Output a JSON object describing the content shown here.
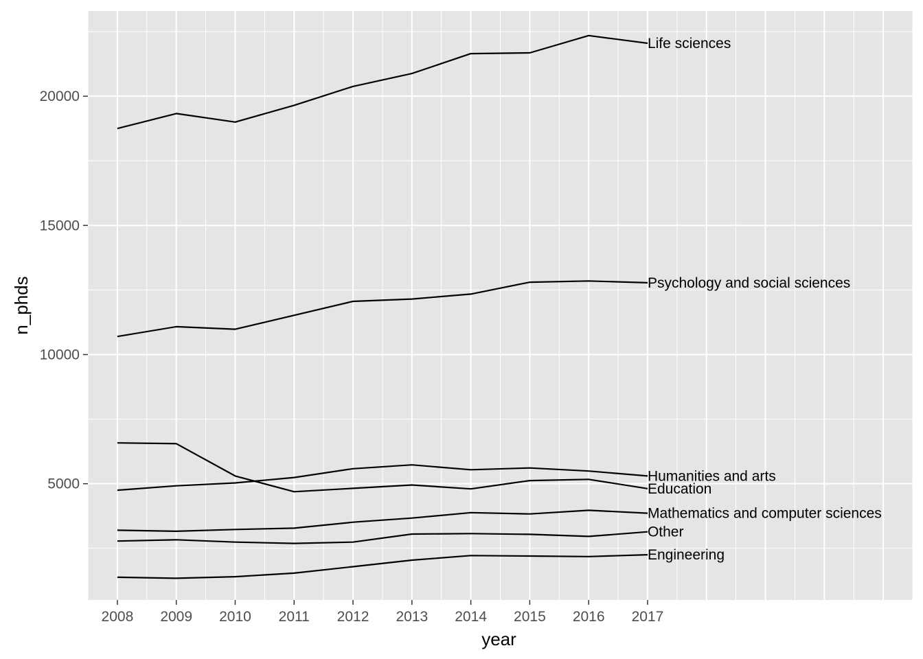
{
  "chart_data": {
    "type": "line",
    "xlabel": "year",
    "ylabel": "n_phds",
    "x": [
      2008,
      2009,
      2010,
      2011,
      2012,
      2013,
      2014,
      2015,
      2016,
      2017
    ],
    "xlim": [
      2007.5,
      2021.5
    ],
    "ylim": [
      500,
      23300
    ],
    "y_ticks": [
      5000,
      10000,
      15000,
      20000
    ],
    "grid": true,
    "legend": "none",
    "colors": {
      "panel": "#e5e5e5",
      "grid": "#ffffff",
      "line": "#000000",
      "tick_text": "#4d4d4d"
    },
    "series": [
      {
        "name": "Life sciences",
        "values": [
          18750,
          19330,
          19000,
          19650,
          20380,
          20880,
          21650,
          21680,
          22350,
          22050
        ]
      },
      {
        "name": "Psychology and social sciences",
        "values": [
          10700,
          11080,
          10980,
          11520,
          12060,
          12150,
          12340,
          12800,
          12850,
          12780
        ]
      },
      {
        "name": "Humanities and arts",
        "values": [
          4750,
          4920,
          5030,
          5240,
          5580,
          5730,
          5540,
          5610,
          5490,
          5300
        ]
      },
      {
        "name": "Education",
        "values": [
          6580,
          6550,
          5300,
          4690,
          4820,
          4950,
          4800,
          5120,
          5170,
          4810
        ]
      },
      {
        "name": "Mathematics and computer sciences",
        "values": [
          3200,
          3160,
          3230,
          3280,
          3510,
          3670,
          3880,
          3830,
          3970,
          3860
        ]
      },
      {
        "name": "Other",
        "values": [
          2780,
          2830,
          2740,
          2690,
          2740,
          3050,
          3070,
          3040,
          2960,
          3140
        ]
      },
      {
        "name": "Engineering",
        "values": [
          1380,
          1340,
          1400,
          1540,
          1790,
          2040,
          2220,
          2200,
          2180,
          2250
        ]
      }
    ]
  }
}
